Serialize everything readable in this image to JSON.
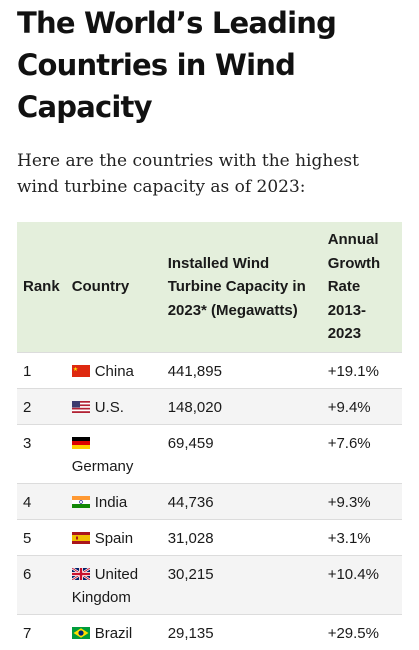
{
  "title": "The World’s Leading Countries in Wind Capacity",
  "intro": "Here are the countries with the highest wind turbine capacity as of 2023:",
  "table": {
    "headers": {
      "rank": "Rank",
      "country": "Country",
      "capacity": "Installed Wind Turbine Capacity in 2023* (Megawatts)",
      "growth": "Annual Growth Rate 2013-2023"
    },
    "rows": [
      {
        "rank": "1",
        "country": "China",
        "flag": "china-flag-icon",
        "capacity": "441,895",
        "growth": "+19.1%"
      },
      {
        "rank": "2",
        "country": "U.S.",
        "flag": "us-flag-icon",
        "capacity": "148,020",
        "growth": "+9.4%"
      },
      {
        "rank": "3",
        "country": "Germany",
        "flag": "germany-flag-icon",
        "capacity": "69,459",
        "growth": "+7.6%"
      },
      {
        "rank": "4",
        "country": "India",
        "flag": "india-flag-icon",
        "capacity": "44,736",
        "growth": "+9.3%"
      },
      {
        "rank": "5",
        "country": "Spain",
        "flag": "spain-flag-icon",
        "capacity": "31,028",
        "growth": "+3.1%"
      },
      {
        "rank": "6",
        "country": "United Kingdom",
        "flag": "uk-flag-icon",
        "capacity": "30,215",
        "growth": "+10.4%"
      },
      {
        "rank": "7",
        "country": "Brazil",
        "flag": "brazil-flag-icon",
        "capacity": "29,135",
        "growth": "+29.5%"
      }
    ]
  },
  "colors": {
    "header_bg": "#e4efdc",
    "stripe_bg": "#f4f4f4"
  }
}
